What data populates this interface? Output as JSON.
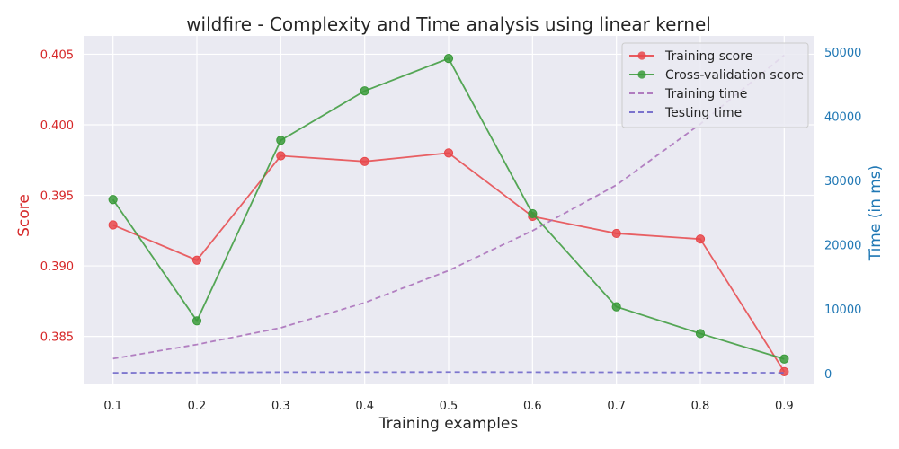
{
  "chart_data": {
    "type": "line",
    "title": "wildfire - Complexity and Time analysis using linear kernel",
    "xlabel": "Training examples",
    "ylabel_left": "Score",
    "ylabel_right": "Time (in ms)",
    "x": [
      0.1,
      0.2,
      0.3,
      0.4,
      0.5,
      0.6,
      0.7,
      0.8,
      0.9
    ],
    "x_ticks": [
      "0.1",
      "0.2",
      "0.3",
      "0.4",
      "0.5",
      "0.6",
      "0.7",
      "0.8",
      "0.9"
    ],
    "y_left_ticks": [
      0.385,
      0.39,
      0.395,
      0.4,
      0.405
    ],
    "y_left_tick_labels": [
      "0.385",
      "0.390",
      "0.395",
      "0.400",
      "0.405"
    ],
    "y_right_ticks": [
      0,
      10000,
      20000,
      30000,
      40000,
      50000
    ],
    "y_right_tick_labels": [
      "0",
      "10000",
      "20000",
      "30000",
      "40000",
      "50000"
    ],
    "ylim_left": [
      0.3816,
      0.4063
    ],
    "ylim_right": [
      -1700,
      52500
    ],
    "xlim": [
      0.065,
      0.935
    ],
    "grid": true,
    "legend_position": "top-right",
    "left_axis_color": "#d62728",
    "right_axis_color": "#1f77b4",
    "series": [
      {
        "name": "Training score",
        "axis": "left",
        "style": "solid-marker",
        "color": "#e8464a",
        "values": [
          0.3929,
          0.3904,
          0.3978,
          0.3974,
          0.398,
          0.3935,
          0.3923,
          0.3919,
          0.3825
        ]
      },
      {
        "name": "Cross-validation score",
        "axis": "left",
        "style": "solid-marker",
        "color": "#3a9a3a",
        "values": [
          0.3947,
          0.3861,
          0.3989,
          0.4024,
          0.4047,
          0.3937,
          0.3871,
          0.3852,
          0.3834
        ]
      },
      {
        "name": "Training time",
        "axis": "right",
        "style": "dashed",
        "color": "#a86cb8",
        "values": [
          2300,
          4500,
          7100,
          11000,
          16000,
          22200,
          29300,
          38800,
          49500
        ]
      },
      {
        "name": "Testing time",
        "axis": "right",
        "style": "dashed",
        "color": "#6a62c8",
        "values": [
          100,
          150,
          200,
          200,
          220,
          200,
          180,
          150,
          100
        ]
      }
    ]
  }
}
